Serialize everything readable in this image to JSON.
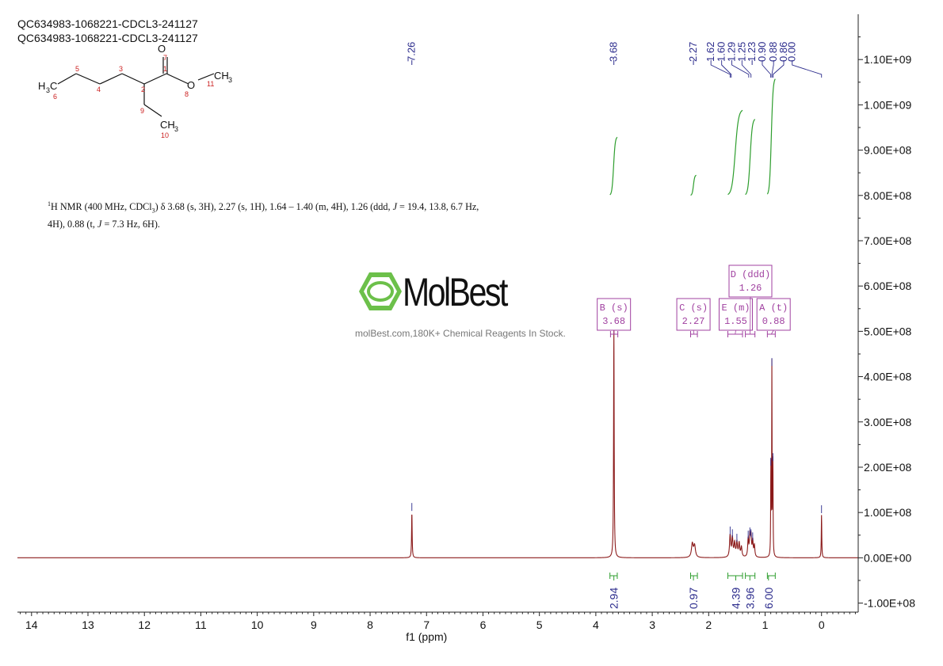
{
  "header": {
    "title_1": "QC634983-1068221-CDCL3-241127",
    "title_2": "QC634983-1068221-CDCL3-241127"
  },
  "summary": {
    "nucleus_sup": "1",
    "text_a": "H NMR (400 MHz, CDCl",
    "sub": "3",
    "text_b": ") δ 3.68 (s, 3H), 2.27 (s, 1H), 1.64 – 1.40 (m, 4H), 1.26 (ddd, ",
    "j1": "J",
    "text_c": " = 19.4, 13.8, 6.7 Hz, 4H), 0.88 (t, ",
    "j2": "J",
    "text_d": " = 7.3 Hz, 6H)."
  },
  "molecule": {
    "atoms": [
      "H",
      "3",
      "C",
      "6",
      "5",
      "4",
      "3",
      "2",
      "1",
      "O",
      "7",
      "O",
      "8",
      "CH",
      "3",
      "11",
      "9",
      "CH",
      "3",
      "10"
    ]
  },
  "watermark": {
    "logo_text": "MolBest",
    "tagline": "molBest.com,180K+ Chemical Reagents In Stock.",
    "logo_color": "#6cc04a"
  },
  "chart_data": {
    "type": "line",
    "title": "QC634983-1068221-CDCL3-241127",
    "xlabel": "f1 (ppm)",
    "ylabel": "",
    "x_reversed": true,
    "xlim": [
      14.25,
      -0.65
    ],
    "ylim": [
      -120000000.0,
      1200000000.0
    ],
    "x_ticks": [
      14,
      13,
      12,
      11,
      10,
      9,
      8,
      7,
      6,
      5,
      4,
      3,
      2,
      1,
      0
    ],
    "x_tick_labels": [
      "14",
      "13",
      "12",
      "11",
      "10",
      "9",
      "8",
      "7",
      "6",
      "5",
      "4",
      "3",
      "2",
      "1",
      "0"
    ],
    "y_ticks": [
      -100000000.0,
      0,
      100000000.0,
      200000000.0,
      300000000.0,
      400000000.0,
      500000000.0,
      600000000.0,
      700000000.0,
      800000000.0,
      900000000.0,
      1000000000.0,
      1100000000.0
    ],
    "y_tick_labels": [
      "-1.00E+08",
      "0.00E+00",
      "1.00E+08",
      "2.00E+08",
      "3.00E+08",
      "4.00E+08",
      "5.00E+08",
      "6.00E+08",
      "7.00E+08",
      "8.00E+08",
      "9.00E+08",
      "1.00E+09",
      "1.10E+09"
    ],
    "peak_labels": [
      "7.26",
      "3.68",
      "2.27",
      "1.62",
      "1.60",
      "1.29",
      "1.25",
      "1.23",
      "0.90",
      "0.88",
      "0.86",
      "0.00"
    ],
    "peak_positions": [
      7.26,
      3.68,
      2.27,
      1.62,
      1.6,
      1.29,
      1.25,
      1.23,
      0.9,
      0.88,
      0.86,
      0.0
    ],
    "label_slots": [
      7.26,
      3.68,
      2.27,
      1.96,
      1.77,
      1.59,
      1.41,
      1.23,
      1.05,
      0.85,
      0.67,
      0.52
    ],
    "series": [
      {
        "color": "#8b1a1a",
        "peaks": [
          {
            "x": 7.26,
            "h": 100000000.0,
            "w": 0.006
          },
          {
            "x": 3.68,
            "h": 505000000.0,
            "w": 0.006
          },
          {
            "x": 2.29,
            "h": 30000000.0,
            "w": 0.018
          },
          {
            "x": 2.25,
            "h": 26000000.0,
            "w": 0.018
          },
          {
            "x": 1.62,
            "h": 48000000.0,
            "w": 0.012
          },
          {
            "x": 1.58,
            "h": 42000000.0,
            "w": 0.012
          },
          {
            "x": 1.54,
            "h": 30000000.0,
            "w": 0.012
          },
          {
            "x": 1.5,
            "h": 32000000.0,
            "w": 0.012
          },
          {
            "x": 1.46,
            "h": 30000000.0,
            "w": 0.012
          },
          {
            "x": 1.42,
            "h": 22000000.0,
            "w": 0.012
          },
          {
            "x": 1.3,
            "h": 39000000.0,
            "w": 0.01
          },
          {
            "x": 1.27,
            "h": 46000000.0,
            "w": 0.01
          },
          {
            "x": 1.25,
            "h": 42000000.0,
            "w": 0.01
          },
          {
            "x": 1.22,
            "h": 35000000.0,
            "w": 0.01
          },
          {
            "x": 1.19,
            "h": 25000000.0,
            "w": 0.01
          },
          {
            "x": 0.898,
            "h": 200000000.0,
            "w": 0.004
          },
          {
            "x": 0.88,
            "h": 420000000.0,
            "w": 0.004
          },
          {
            "x": 0.862,
            "h": 210000000.0,
            "w": 0.004
          },
          {
            "x": 0.0,
            "h": 95000000.0,
            "w": 0.005
          }
        ]
      }
    ],
    "integral_curves": [
      {
        "from": 3.75,
        "to": 3.62,
        "y_start": 800000000.0,
        "y_end": 930000000.0
      },
      {
        "from": 2.32,
        "to": 2.22,
        "y_start": 800000000.0,
        "y_end": 845000000.0
      },
      {
        "from": 1.66,
        "to": 1.4,
        "y_start": 800000000.0,
        "y_end": 990000000.0
      },
      {
        "from": 1.35,
        "to": 1.18,
        "y_start": 800000000.0,
        "y_end": 970000000.0
      },
      {
        "from": 0.96,
        "to": 0.82,
        "y_start": 800000000.0,
        "y_end": 1060000000.0
      }
    ],
    "integrals": [
      {
        "value": "2.94",
        "from": 3.75,
        "to": 3.62,
        "center": 3.68
      },
      {
        "value": "0.97",
        "from": 2.32,
        "to": 2.2,
        "center": 2.27
      },
      {
        "value": "4.39",
        "from": 1.66,
        "to": 1.4,
        "center": 1.52
      },
      {
        "value": "3.96",
        "from": 1.35,
        "to": 1.18,
        "center": 1.27
      },
      {
        "value": "6.00",
        "from": 0.96,
        "to": 0.82,
        "center": 0.94
      }
    ],
    "multiplets": [
      {
        "letter": "B (s)",
        "value": "3.68",
        "from": 3.74,
        "to": 3.61,
        "box_center": 3.68,
        "row": 0
      },
      {
        "letter": "C (s)",
        "value": "2.27",
        "from": 2.32,
        "to": 2.2,
        "box_center": 2.27,
        "row": 0
      },
      {
        "letter": "E (m)",
        "value": "1.55",
        "from": 1.66,
        "to": 1.4,
        "box_center": 1.52,
        "row": 0
      },
      {
        "letter": "A (t)",
        "value": "0.88",
        "from": 0.96,
        "to": 0.82,
        "box_center": 0.85,
        "row": 0
      },
      {
        "letter": "D (ddd)",
        "value": "1.26",
        "from": 1.35,
        "to": 1.18,
        "box_center": 1.26,
        "row": 1
      }
    ],
    "colors": {
      "spectrum": "#8b1a1a",
      "integral": "#2e9e2e",
      "peak_label": "#2b2b8c",
      "multiplet": "#a040a0",
      "axis": "#222222"
    },
    "grid": false,
    "legend": "none"
  }
}
